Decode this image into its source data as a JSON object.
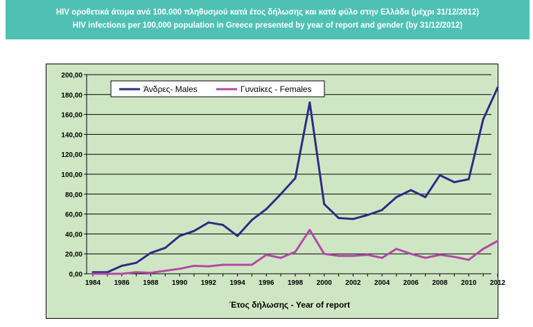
{
  "header": {
    "title_greek": "HIV οροθετικά άτομα ανά 100.000 πληθυσμού κατά έτος δήλωσης και κατά φύλο στην Ελλάδα (μέχρι 31/12/2012)",
    "title_english": "HIV infections per 100,000 population in Greece presented by year of report and gender (by 31/12/2012)"
  },
  "colors": {
    "banner": "#4fc1b4",
    "plot_background": "#cfe6c4",
    "males": "#2e2a83",
    "females": "#b04aa5"
  },
  "chart_data": {
    "type": "line",
    "title": "HIV infections per 100,000 population in Greece presented by year of report and gender (by 31/12/2012)",
    "xlabel": "Έτος δήλωσης - Year of report",
    "ylabel": "",
    "x": [
      1984,
      1985,
      1986,
      1987,
      1988,
      1989,
      1990,
      1991,
      1992,
      1993,
      1994,
      1995,
      1996,
      1997,
      1998,
      1999,
      2000,
      2001,
      2002,
      2003,
      2004,
      2005,
      2006,
      2007,
      2008,
      2009,
      2010,
      2011,
      2012
    ],
    "xlim": [
      1984,
      2012
    ],
    "ylim": [
      0,
      200
    ],
    "xticks": [
      "1984",
      "1986",
      "1988",
      "1990",
      "1992",
      "1994",
      "1996",
      "1998",
      "2000",
      "2002",
      "2004",
      "2006",
      "2008",
      "2010",
      "2012"
    ],
    "yticks": [
      "0,00",
      "20,00",
      "40,00",
      "60,00",
      "80,00",
      "100,00",
      "120,00",
      "140,00",
      "160,00",
      "180,00",
      "200,00"
    ],
    "grid": "horizontal",
    "legend_position": "top-left",
    "series": [
      {
        "name": "Άνδρες- Males",
        "color": "#2e2a83",
        "values": [
          1.5,
          1.5,
          8,
          11,
          21,
          26,
          38,
          43,
          51.5,
          49,
          38,
          54,
          65,
          80,
          96,
          172,
          70,
          56,
          55,
          59,
          64,
          77,
          84,
          77,
          99,
          92,
          95,
          155,
          187
        ]
      },
      {
        "name": "Γυναίκες - Females",
        "color": "#b04aa5",
        "values": [
          0,
          0,
          0,
          1.5,
          1,
          3,
          5,
          8,
          7.5,
          9,
          9,
          9,
          19,
          16,
          22,
          44,
          20,
          18,
          18,
          19,
          16,
          25,
          20,
          16,
          19,
          17,
          14,
          25,
          33
        ]
      }
    ]
  }
}
